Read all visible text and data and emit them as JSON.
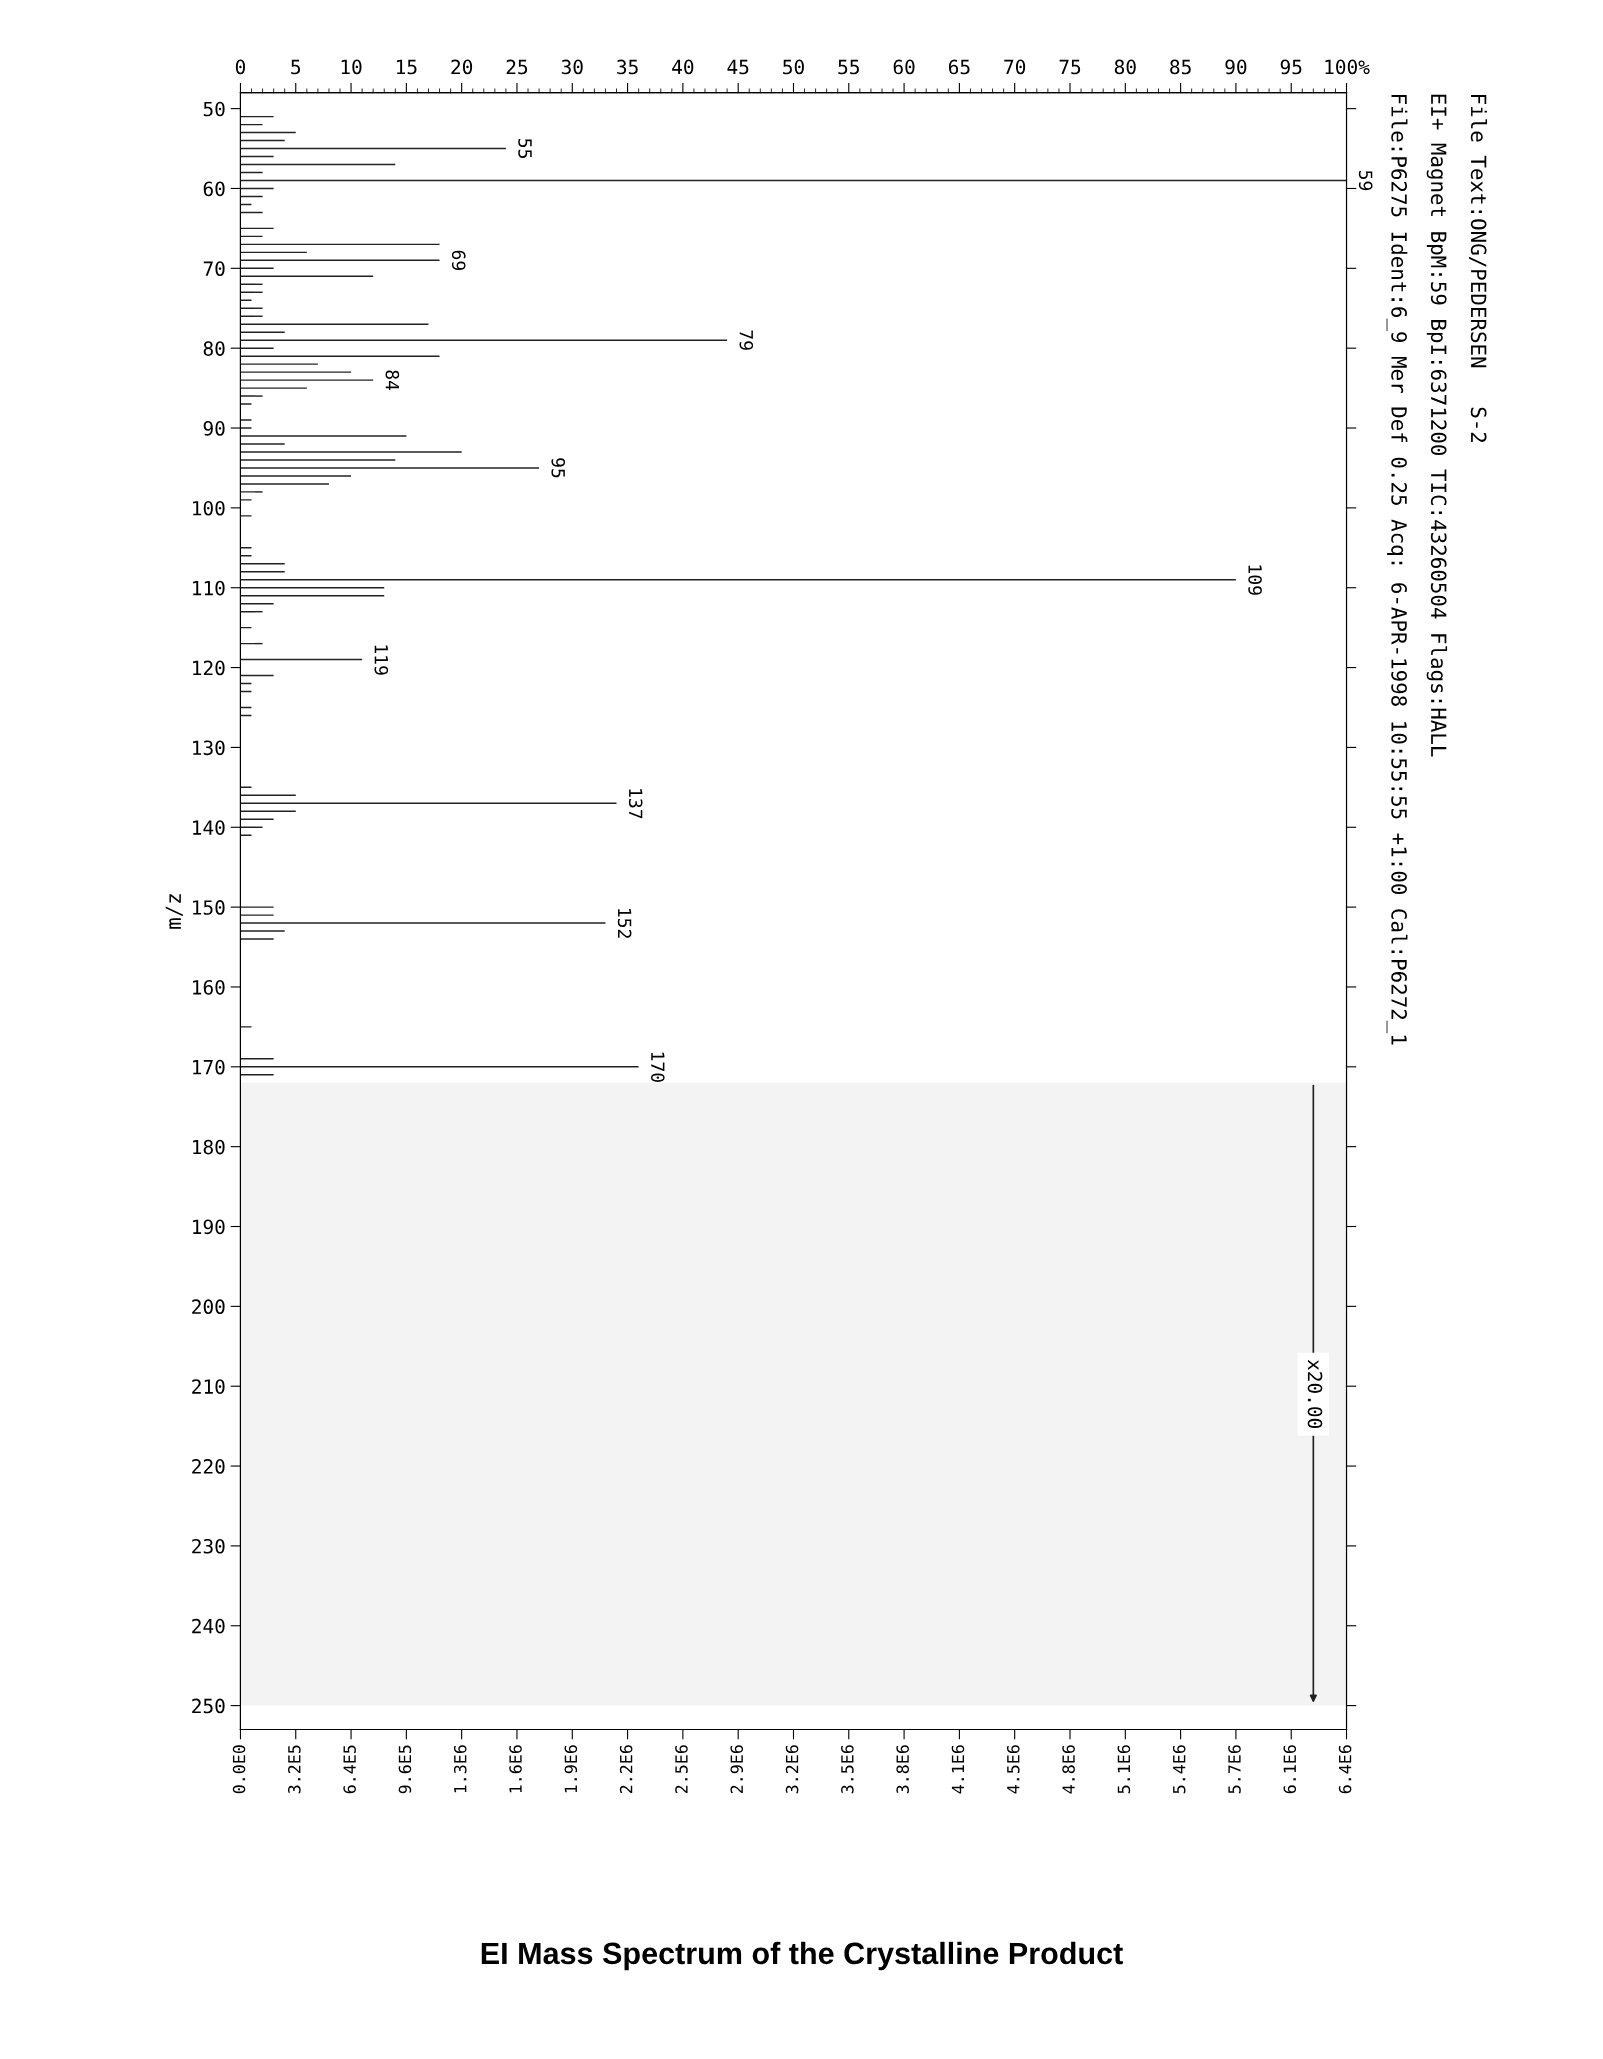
{
  "chart_data": {
    "type": "bar",
    "orientation": "horizontal",
    "title": "EI Mass Spectrum of the Crystalline Product",
    "ylabel": "m/z",
    "annotations": [
      "File:P6275 Ident:6_9 Mer Def 0.25 Acq: 6-APR-1998 10:55:55 +1:00 Cal:P6272_1",
      "EI+ Magnet BpM:59 BpI:6371200 TIC:43260504 Flags:HALL",
      "File Text:ONG/PEDERSEN   S-2",
      {
        "text": "55",
        "x": 24,
        "y": 55
      },
      {
        "text": "59",
        "x": 100,
        "y": 59
      },
      {
        "text": "69",
        "x": 18,
        "y": 69
      },
      {
        "text": "79",
        "x": 44,
        "y": 79
      },
      {
        "text": "84",
        "x": 12,
        "y": 84
      },
      {
        "text": "95",
        "x": 27,
        "y": 95
      },
      {
        "text": "109",
        "x": 90,
        "y": 109
      },
      {
        "text": "119",
        "x": 11,
        "y": 119
      },
      {
        "text": "137",
        "x": 34,
        "y": 137
      },
      {
        "text": "152",
        "x": 33,
        "y": 152
      },
      {
        "text": "170",
        "x": 36,
        "y": 170
      }
    ],
    "x": [
      51,
      52,
      53,
      54,
      55,
      56,
      57,
      58,
      59,
      60,
      61,
      62,
      63,
      65,
      66,
      67,
      68,
      69,
      70,
      71,
      72,
      73,
      74,
      75,
      76,
      77,
      78,
      79,
      80,
      81,
      82,
      83,
      84,
      85,
      86,
      87,
      89,
      90,
      91,
      92,
      93,
      94,
      95,
      96,
      97,
      98,
      99,
      101,
      105,
      106,
      107,
      108,
      109,
      110,
      111,
      112,
      113,
      115,
      117,
      119,
      121,
      122,
      123,
      125,
      126,
      135,
      136,
      137,
      138,
      139,
      140,
      141,
      150,
      151,
      152,
      153,
      154,
      165,
      169,
      170,
      171
    ],
    "series": [
      {
        "color": "#222222",
        "values": [
          3,
          2,
          5,
          4,
          24,
          3,
          14,
          2,
          100,
          3,
          2,
          1,
          2,
          3,
          2,
          18,
          6,
          18,
          3,
          12,
          2,
          2,
          1,
          2,
          2,
          17,
          4,
          44,
          3,
          18,
          7,
          10,
          12,
          6,
          2,
          1,
          1,
          1,
          15,
          4,
          20,
          14,
          27,
          10,
          8,
          2,
          1,
          1,
          1,
          1,
          4,
          4,
          90,
          13,
          13,
          3,
          2,
          1,
          2,
          11,
          3,
          1,
          1,
          1,
          1,
          1,
          5,
          34,
          5,
          3,
          2,
          1,
          3,
          3,
          33,
          4,
          3,
          1,
          3,
          36,
          3
        ]
      }
    ],
    "xlim": [
      0,
      100
    ],
    "xticks": [
      0,
      5,
      10,
      15,
      20,
      25,
      30,
      35,
      40,
      45,
      50,
      55,
      60,
      65,
      70,
      75,
      80,
      85,
      90,
      95,
      {
        "value": 100,
        "label": "100%"
      }
    ],
    "x2lim": [
      0,
      6371200
    ],
    "x2ticks": [
      {
        "value": 0,
        "label": "0.0E0"
      },
      {
        "value": 318560,
        "label": "3.2E5"
      },
      {
        "value": 637120,
        "label": "6.4E5"
      },
      {
        "value": 955680,
        "label": "9.6E5"
      },
      {
        "value": 1274240,
        "label": "1.3E6"
      },
      {
        "value": 1592800,
        "label": "1.6E6"
      },
      {
        "value": 1911360,
        "label": "1.9E6"
      },
      {
        "value": 2229920,
        "label": "2.2E6"
      },
      {
        "value": 2548480,
        "label": "2.5E6"
      },
      {
        "value": 2867040,
        "label": "2.9E6"
      },
      {
        "value": 3185600,
        "label": "3.2E6"
      },
      {
        "value": 3504160,
        "label": "3.5E6"
      },
      {
        "value": 3822720,
        "label": "3.8E6"
      },
      {
        "value": 4141280,
        "label": "4.1E6"
      },
      {
        "value": 4459840,
        "label": "4.5E6"
      },
      {
        "value": 4778400,
        "label": "4.8E6"
      },
      {
        "value": 5096960,
        "label": "5.1E6"
      },
      {
        "value": 5415520,
        "label": "5.4E6"
      },
      {
        "value": 5734080,
        "label": "5.7E6"
      },
      {
        "value": 6052640,
        "label": "6.1E6"
      },
      {
        "value": 6371200,
        "label": "6.4E6"
      }
    ],
    "ylim": [
      253,
      48
    ],
    "yticks": [
      50,
      60,
      70,
      80,
      90,
      100,
      110,
      120,
      130,
      140,
      150,
      160,
      170,
      180,
      190,
      200,
      210,
      220,
      230,
      240,
      250
    ],
    "bands": [
      {
        "axis": "y",
        "from": 172,
        "to": 250,
        "label": "x20.00"
      }
    ]
  }
}
